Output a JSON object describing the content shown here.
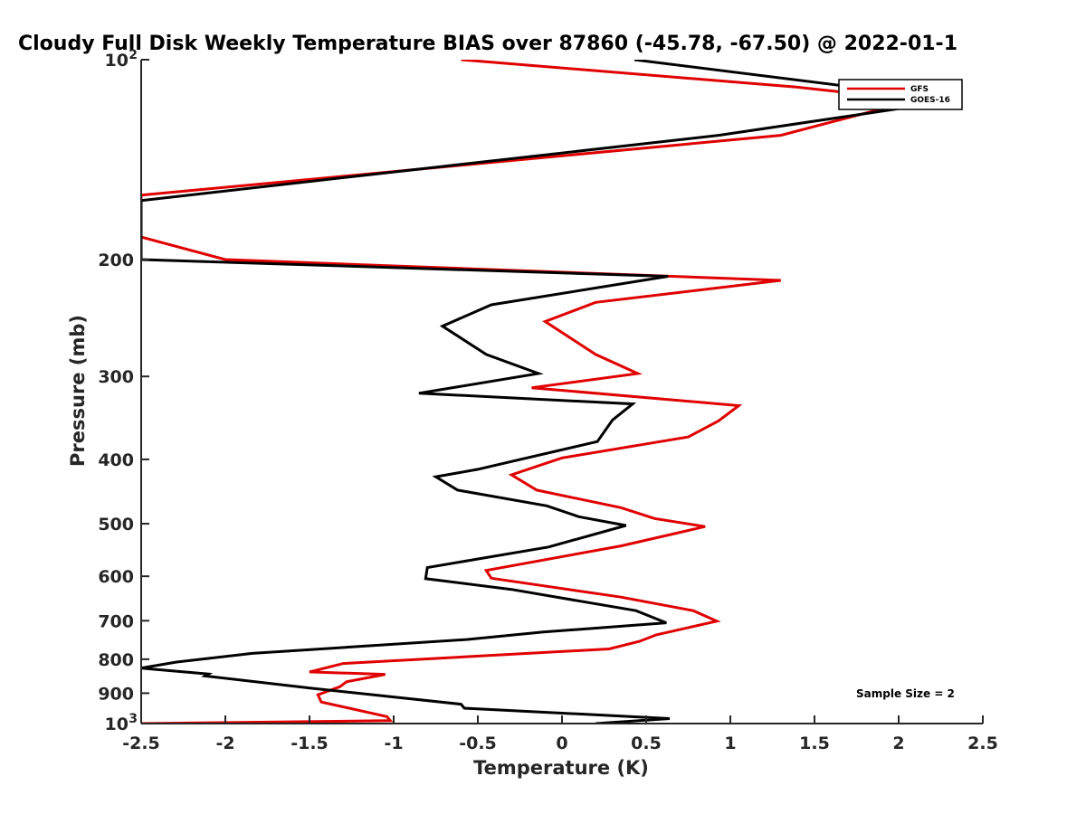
{
  "chart_data": {
    "type": "line",
    "title": "Cloudy Full Disk Weekly Temperature BIAS over 87860 (-45.78, -67.50) @ 2022-01-1",
    "xlabel": "Temperature (K)",
    "ylabel": "Pressure (mb)",
    "xlim": [
      -2.5,
      2.5
    ],
    "ylim": [
      100,
      1000
    ],
    "y_scale": "log",
    "y_reversed": true,
    "grid": false,
    "legend_position": "top-right",
    "x_ticks": [
      "-2.5",
      "-2",
      "-1.5",
      "-1",
      "-0.5",
      "0",
      "0.5",
      "1",
      "1.5",
      "2",
      "2.5"
    ],
    "y_ticks": [
      {
        "value": 100,
        "label": "10",
        "exp": "2"
      },
      {
        "value": 200,
        "label": "200"
      },
      {
        "value": 300,
        "label": "300"
      },
      {
        "value": 400,
        "label": "400"
      },
      {
        "value": 500,
        "label": "500"
      },
      {
        "value": 600,
        "label": "600"
      },
      {
        "value": 700,
        "label": "700"
      },
      {
        "value": 800,
        "label": "800"
      },
      {
        "value": 900,
        "label": "900"
      },
      {
        "value": 1000,
        "label": "10",
        "exp": "3"
      }
    ],
    "annotation": "Sample Size = 2",
    "series": [
      {
        "name": "GFS",
        "color": "#e00000",
        "points": [
          [
            -0.6,
            100
          ],
          [
            1.4,
            110
          ],
          [
            2.1,
            115
          ],
          [
            1.3,
            130
          ],
          [
            -2.5,
            160
          ],
          [
            -2.5,
            185
          ],
          [
            -2.0,
            200
          ],
          [
            1.3,
            215
          ],
          [
            0.2,
            232
          ],
          [
            -0.1,
            248
          ],
          [
            0.2,
            278
          ],
          [
            0.45,
            297
          ],
          [
            -0.18,
            312
          ],
          [
            1.05,
            332
          ],
          [
            0.93,
            350
          ],
          [
            0.75,
            370
          ],
          [
            0.0,
            398
          ],
          [
            -0.3,
            422
          ],
          [
            -0.15,
            445
          ],
          [
            0.35,
            473
          ],
          [
            0.55,
            491
          ],
          [
            0.85,
            505
          ],
          [
            0.35,
            540
          ],
          [
            -0.45,
            588
          ],
          [
            -0.42,
            604
          ],
          [
            0.35,
            645
          ],
          [
            0.78,
            676
          ],
          [
            0.92,
            701
          ],
          [
            0.56,
            735
          ],
          [
            0.46,
            752
          ],
          [
            0.28,
            772
          ],
          [
            -1.3,
            812
          ],
          [
            -1.5,
            836
          ],
          [
            -1.05,
            843
          ],
          [
            -1.28,
            865
          ],
          [
            -1.32,
            880
          ],
          [
            -1.45,
            905
          ],
          [
            -1.43,
            928
          ],
          [
            -1.04,
            976
          ],
          [
            -1.02,
            990
          ],
          [
            -2.5,
            1000
          ]
        ]
      },
      {
        "name": "GOES-16",
        "color": "#000000",
        "points": [
          [
            0.43,
            100
          ],
          [
            2.35,
            115
          ],
          [
            0.93,
            130
          ],
          [
            -2.5,
            163
          ],
          [
            -2.5,
            200
          ],
          [
            0.63,
            212
          ],
          [
            -0.42,
            234
          ],
          [
            -0.71,
            252
          ],
          [
            -0.45,
            278
          ],
          [
            -0.14,
            297
          ],
          [
            -0.85,
            318
          ],
          [
            0.42,
            330
          ],
          [
            0.3,
            349
          ],
          [
            0.21,
            376
          ],
          [
            -0.5,
            414
          ],
          [
            -0.75,
            425
          ],
          [
            -0.62,
            445
          ],
          [
            -0.09,
            470
          ],
          [
            0.1,
            488
          ],
          [
            0.38,
            503
          ],
          [
            -0.08,
            542
          ],
          [
            -0.8,
            582
          ],
          [
            -0.81,
            605
          ],
          [
            -0.3,
            628
          ],
          [
            0.44,
            676
          ],
          [
            0.62,
            705
          ],
          [
            -0.11,
            728
          ],
          [
            -0.56,
            747
          ],
          [
            -1.84,
            784
          ],
          [
            -2.29,
            808
          ],
          [
            -2.5,
            825
          ],
          [
            -2.1,
            842
          ],
          [
            -2.12,
            848
          ],
          [
            -1.48,
            885
          ],
          [
            -0.6,
            935
          ],
          [
            -0.58,
            948
          ],
          [
            0.64,
            983
          ],
          [
            0.2,
            1000
          ]
        ]
      }
    ]
  }
}
